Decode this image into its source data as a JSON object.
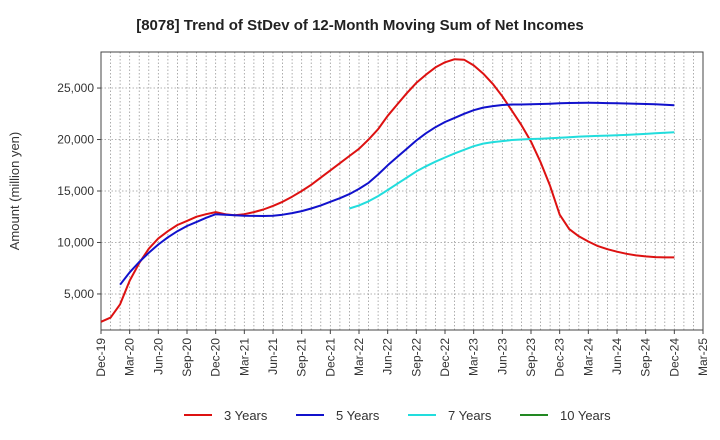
{
  "chart_data": {
    "type": "line",
    "title": "[8078]  Trend of StDev of 12-Month Moving Sum of Net Incomes",
    "ylabel": "Amount (million yen)",
    "xlabel": "",
    "ylim": [
      1500,
      28500
    ],
    "yticks": [
      5000,
      10000,
      15000,
      20000,
      25000
    ],
    "ytick_labels": [
      "5,000",
      "10,000",
      "15,000",
      "20,000",
      "25,000"
    ],
    "x_range": [
      "2019-12",
      "2025-03"
    ],
    "x_ticks": [
      "Dec-19",
      "Mar-20",
      "Jun-20",
      "Sep-20",
      "Dec-20",
      "Mar-21",
      "Jun-21",
      "Sep-21",
      "Dec-21",
      "Mar-22",
      "Jun-22",
      "Sep-22",
      "Dec-22",
      "Mar-23",
      "Jun-23",
      "Sep-23",
      "Dec-23",
      "Mar-24",
      "Jun-24",
      "Sep-24",
      "Dec-24",
      "Mar-25"
    ],
    "grid": true,
    "legend_position": "bottom",
    "series": [
      {
        "name": "3 Years",
        "color": "#dd1111",
        "points": [
          [
            "2019-12",
            2300
          ],
          [
            "2020-01",
            2700
          ],
          [
            "2020-02",
            4000
          ],
          [
            "2020-03",
            6300
          ],
          [
            "2020-04",
            8000
          ],
          [
            "2020-05",
            9400
          ],
          [
            "2020-06",
            10400
          ],
          [
            "2020-07",
            11100
          ],
          [
            "2020-08",
            11700
          ],
          [
            "2020-09",
            12100
          ],
          [
            "2020-10",
            12500
          ],
          [
            "2020-11",
            12750
          ],
          [
            "2020-12",
            12950
          ],
          [
            "2021-01",
            12750
          ],
          [
            "2021-02",
            12650
          ],
          [
            "2021-03",
            12750
          ],
          [
            "2021-04",
            12950
          ],
          [
            "2021-05",
            13200
          ],
          [
            "2021-06",
            13550
          ],
          [
            "2021-07",
            13950
          ],
          [
            "2021-08",
            14450
          ],
          [
            "2021-09",
            15000
          ],
          [
            "2021-10",
            15600
          ],
          [
            "2021-11",
            16300
          ],
          [
            "2021-12",
            17000
          ],
          [
            "2022-01",
            17700
          ],
          [
            "2022-02",
            18400
          ],
          [
            "2022-03",
            19100
          ],
          [
            "2022-04",
            20000
          ],
          [
            "2022-05",
            21000
          ],
          [
            "2022-06",
            22300
          ],
          [
            "2022-07",
            23400
          ],
          [
            "2022-08",
            24500
          ],
          [
            "2022-09",
            25500
          ],
          [
            "2022-10",
            26300
          ],
          [
            "2022-11",
            27000
          ],
          [
            "2022-12",
            27500
          ],
          [
            "2023-01",
            27800
          ],
          [
            "2023-02",
            27750
          ],
          [
            "2023-03",
            27200
          ],
          [
            "2023-04",
            26400
          ],
          [
            "2023-05",
            25400
          ],
          [
            "2023-06",
            24200
          ],
          [
            "2023-07",
            22800
          ],
          [
            "2023-08",
            21400
          ],
          [
            "2023-09",
            19800
          ],
          [
            "2023-10",
            17800
          ],
          [
            "2023-11",
            15500
          ],
          [
            "2023-12",
            12700
          ],
          [
            "2024-01",
            11300
          ],
          [
            "2024-02",
            10600
          ],
          [
            "2024-03",
            10100
          ],
          [
            "2024-04",
            9650
          ],
          [
            "2024-05",
            9350
          ],
          [
            "2024-06",
            9100
          ],
          [
            "2024-07",
            8900
          ],
          [
            "2024-08",
            8750
          ],
          [
            "2024-09",
            8650
          ],
          [
            "2024-10",
            8580
          ],
          [
            "2024-11",
            8550
          ],
          [
            "2024-12",
            8550
          ]
        ]
      },
      {
        "name": "5 Years",
        "color": "#1111cc",
        "points": [
          [
            "2020-02",
            5900
          ],
          [
            "2020-03",
            7100
          ],
          [
            "2020-04",
            8100
          ],
          [
            "2020-05",
            9000
          ],
          [
            "2020-06",
            9800
          ],
          [
            "2020-07",
            10500
          ],
          [
            "2020-08",
            11100
          ],
          [
            "2020-09",
            11600
          ],
          [
            "2020-10",
            12000
          ],
          [
            "2020-11",
            12400
          ],
          [
            "2020-12",
            12750
          ],
          [
            "2021-01",
            12700
          ],
          [
            "2021-02",
            12650
          ],
          [
            "2021-03",
            12600
          ],
          [
            "2021-04",
            12580
          ],
          [
            "2021-05",
            12570
          ],
          [
            "2021-06",
            12600
          ],
          [
            "2021-07",
            12700
          ],
          [
            "2021-08",
            12850
          ],
          [
            "2021-09",
            13050
          ],
          [
            "2021-10",
            13300
          ],
          [
            "2021-11",
            13600
          ],
          [
            "2021-12",
            13950
          ],
          [
            "2022-01",
            14300
          ],
          [
            "2022-02",
            14700
          ],
          [
            "2022-03",
            15200
          ],
          [
            "2022-04",
            15800
          ],
          [
            "2022-05",
            16600
          ],
          [
            "2022-06",
            17500
          ],
          [
            "2022-07",
            18300
          ],
          [
            "2022-08",
            19100
          ],
          [
            "2022-09",
            19900
          ],
          [
            "2022-10",
            20600
          ],
          [
            "2022-11",
            21200
          ],
          [
            "2022-12",
            21700
          ],
          [
            "2023-01",
            22100
          ],
          [
            "2023-02",
            22500
          ],
          [
            "2023-03",
            22850
          ],
          [
            "2023-04",
            23100
          ],
          [
            "2023-05",
            23250
          ],
          [
            "2023-06",
            23350
          ],
          [
            "2023-07",
            23400
          ],
          [
            "2023-08",
            23400
          ],
          [
            "2023-09",
            23420
          ],
          [
            "2023-10",
            23450
          ],
          [
            "2023-11",
            23480
          ],
          [
            "2023-12",
            23520
          ],
          [
            "2024-01",
            23550
          ],
          [
            "2024-02",
            23560
          ],
          [
            "2024-03",
            23570
          ],
          [
            "2024-04",
            23560
          ],
          [
            "2024-05",
            23540
          ],
          [
            "2024-06",
            23520
          ],
          [
            "2024-07",
            23500
          ],
          [
            "2024-08",
            23480
          ],
          [
            "2024-09",
            23450
          ],
          [
            "2024-10",
            23420
          ],
          [
            "2024-11",
            23380
          ],
          [
            "2024-12",
            23320
          ]
        ]
      },
      {
        "name": "7 Years",
        "color": "#22dddd",
        "points": [
          [
            "2022-02",
            13300
          ],
          [
            "2022-03",
            13600
          ],
          [
            "2022-04",
            14000
          ],
          [
            "2022-05",
            14500
          ],
          [
            "2022-06",
            15100
          ],
          [
            "2022-07",
            15700
          ],
          [
            "2022-08",
            16300
          ],
          [
            "2022-09",
            16900
          ],
          [
            "2022-10",
            17400
          ],
          [
            "2022-11",
            17850
          ],
          [
            "2022-12",
            18250
          ],
          [
            "2023-01",
            18650
          ],
          [
            "2023-02",
            19000
          ],
          [
            "2023-03",
            19350
          ],
          [
            "2023-04",
            19600
          ],
          [
            "2023-05",
            19750
          ],
          [
            "2023-06",
            19850
          ],
          [
            "2023-07",
            19950
          ],
          [
            "2023-08",
            20000
          ],
          [
            "2023-09",
            20050
          ],
          [
            "2023-10",
            20080
          ],
          [
            "2023-11",
            20120
          ],
          [
            "2023-12",
            20180
          ],
          [
            "2024-01",
            20230
          ],
          [
            "2024-02",
            20280
          ],
          [
            "2024-03",
            20320
          ],
          [
            "2024-04",
            20350
          ],
          [
            "2024-05",
            20380
          ],
          [
            "2024-06",
            20410
          ],
          [
            "2024-07",
            20450
          ],
          [
            "2024-08",
            20500
          ],
          [
            "2024-09",
            20550
          ],
          [
            "2024-10",
            20600
          ],
          [
            "2024-11",
            20650
          ],
          [
            "2024-12",
            20700
          ]
        ]
      },
      {
        "name": "10 Years",
        "color": "#228822",
        "points": []
      }
    ]
  }
}
